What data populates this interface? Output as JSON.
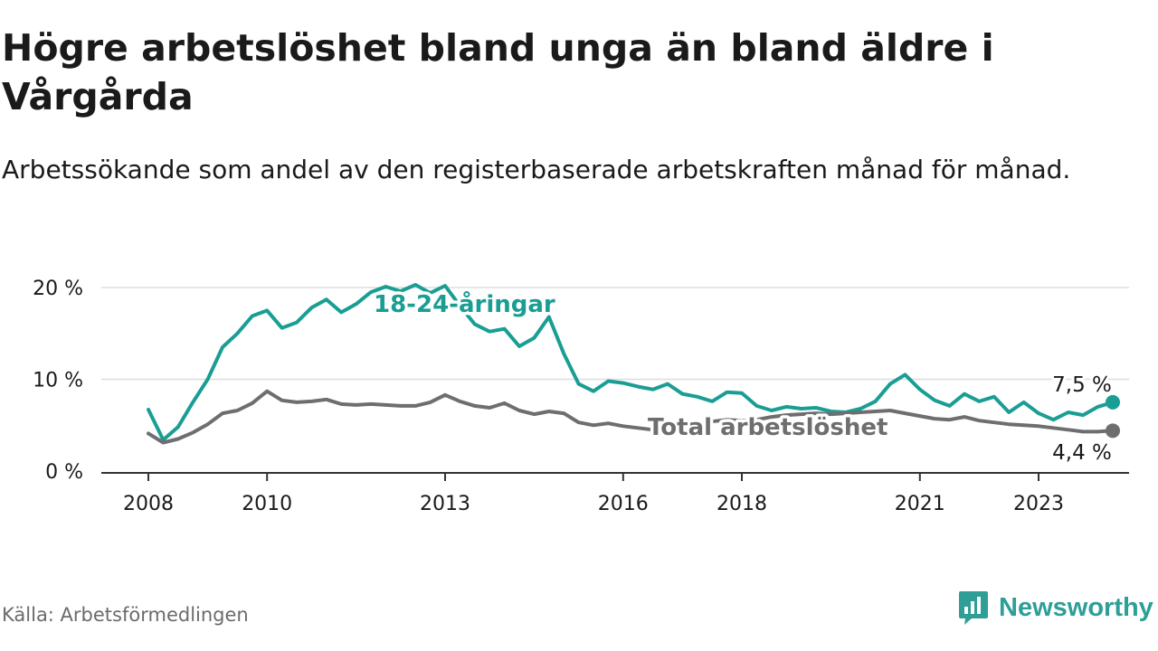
{
  "title": "Högre arbetslöshet bland unga än bland äldre i Vårgårda",
  "subtitle": "Arbetssökande som andel av den registerbaserade arbetskraften månad för månad.",
  "source": "Källa: Arbetsförmedlingen",
  "brand": {
    "name": "Newsworthy",
    "icon": "newsworthy-logo-icon"
  },
  "colors": {
    "youth": "#1a9e94",
    "total": "#6e6e70",
    "grid": "#dddddd",
    "axis": "#333333",
    "text": "#1a1a1a"
  },
  "chart_data": {
    "type": "line",
    "title": "Högre arbetslöshet bland unga än bland äldre i Vårgårda",
    "xlabel": "",
    "ylabel": "",
    "ylim": [
      0,
      20
    ],
    "xlim": [
      2008,
      2024.6
    ],
    "yticks": [
      0,
      10,
      20
    ],
    "ytick_labels": [
      "0 %",
      "10 %",
      "20 %"
    ],
    "xticks": [
      2008,
      2010,
      2013,
      2016,
      2018,
      2021,
      2023
    ],
    "xtick_labels": [
      "2008",
      "2010",
      "2013",
      "2016",
      "2018",
      "2021",
      "2023"
    ],
    "grid": true,
    "series": [
      {
        "name": "18-24-åringar",
        "label": "18-24-åringar",
        "color": "#1a9e94",
        "end_label": "7,5 %",
        "x": [
          2008.0,
          2008.25,
          2008.5,
          2008.75,
          2009.0,
          2009.25,
          2009.5,
          2009.75,
          2010.0,
          2010.25,
          2010.5,
          2010.75,
          2011.0,
          2011.25,
          2011.5,
          2011.75,
          2012.0,
          2012.25,
          2012.5,
          2012.75,
          2013.0,
          2013.25,
          2013.5,
          2013.75,
          2014.0,
          2014.25,
          2014.5,
          2014.75,
          2015.0,
          2015.25,
          2015.5,
          2015.75,
          2016.0,
          2016.25,
          2016.5,
          2016.75,
          2017.0,
          2017.25,
          2017.5,
          2017.75,
          2018.0,
          2018.25,
          2018.5,
          2018.75,
          2019.0,
          2019.25,
          2019.5,
          2019.75,
          2020.0,
          2020.25,
          2020.5,
          2020.75,
          2021.0,
          2021.25,
          2021.5,
          2021.75,
          2022.0,
          2022.25,
          2022.5,
          2022.75,
          2023.0,
          2023.25,
          2023.5,
          2023.75,
          2024.0,
          2024.25
        ],
        "values": [
          6.7,
          3.4,
          4.8,
          7.5,
          10.0,
          13.5,
          15.0,
          16.9,
          17.5,
          15.6,
          16.2,
          17.8,
          18.7,
          17.3,
          18.2,
          19.5,
          20.1,
          19.6,
          20.3,
          19.4,
          20.2,
          18.0,
          16.0,
          15.2,
          15.5,
          13.6,
          14.5,
          16.8,
          12.8,
          9.5,
          8.7,
          9.8,
          9.6,
          9.2,
          8.9,
          9.5,
          8.4,
          8.1,
          7.6,
          8.6,
          8.5,
          7.1,
          6.6,
          7.0,
          6.8,
          6.9,
          6.5,
          6.4,
          6.8,
          7.6,
          9.5,
          10.5,
          8.9,
          7.7,
          7.1,
          8.4,
          7.6,
          8.1,
          6.4,
          7.5,
          6.3,
          5.6,
          6.4,
          6.1,
          7.0,
          7.5
        ]
      },
      {
        "name": "Total arbetslöshet",
        "label": "Total arbetslöshet",
        "color": "#6e6e70",
        "end_label": "4,4 %",
        "x": [
          2008.0,
          2008.25,
          2008.5,
          2008.75,
          2009.0,
          2009.25,
          2009.5,
          2009.75,
          2010.0,
          2010.25,
          2010.5,
          2010.75,
          2011.0,
          2011.25,
          2011.5,
          2011.75,
          2012.0,
          2012.25,
          2012.5,
          2012.75,
          2013.0,
          2013.25,
          2013.5,
          2013.75,
          2014.0,
          2014.25,
          2014.5,
          2014.75,
          2015.0,
          2015.25,
          2015.5,
          2015.75,
          2016.0,
          2016.25,
          2016.5,
          2016.75,
          2017.0,
          2017.25,
          2017.5,
          2017.75,
          2018.0,
          2018.25,
          2018.5,
          2018.75,
          2019.0,
          2019.25,
          2019.5,
          2019.75,
          2020.0,
          2020.25,
          2020.5,
          2020.75,
          2021.0,
          2021.25,
          2021.5,
          2021.75,
          2022.0,
          2022.25,
          2022.5,
          2022.75,
          2023.0,
          2023.25,
          2023.5,
          2023.75,
          2024.0,
          2024.25
        ],
        "values": [
          4.1,
          3.1,
          3.5,
          4.2,
          5.1,
          6.3,
          6.6,
          7.4,
          8.7,
          7.7,
          7.5,
          7.6,
          7.8,
          7.3,
          7.2,
          7.3,
          7.2,
          7.1,
          7.1,
          7.5,
          8.3,
          7.6,
          7.1,
          6.9,
          7.4,
          6.6,
          6.2,
          6.5,
          6.3,
          5.3,
          5.0,
          5.2,
          4.9,
          4.7,
          4.5,
          4.8,
          5.0,
          5.2,
          5.4,
          5.6,
          5.5,
          5.6,
          5.9,
          6.1,
          6.2,
          6.3,
          6.2,
          6.3,
          6.4,
          6.5,
          6.6,
          6.3,
          6.0,
          5.7,
          5.6,
          5.9,
          5.5,
          5.3,
          5.1,
          5.0,
          4.9,
          4.7,
          4.5,
          4.3,
          4.3,
          4.4
        ]
      }
    ]
  }
}
